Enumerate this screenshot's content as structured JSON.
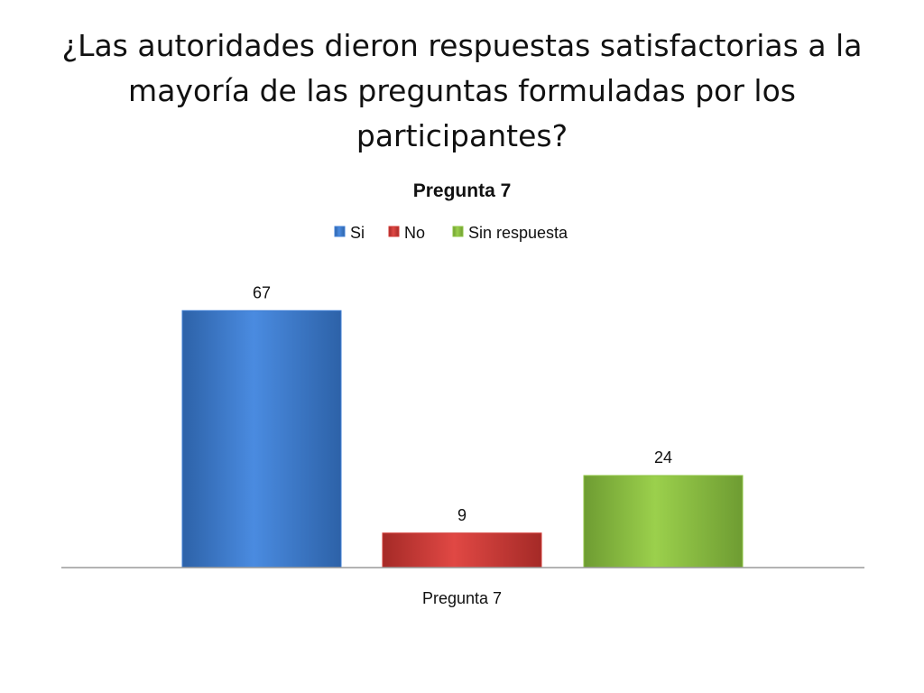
{
  "slide": {
    "title": "¿Las autoridades dieron respuestas satisfactorias a la mayoría de las preguntas formuladas por los participantes?"
  },
  "chart_data": {
    "type": "bar",
    "title": "Pregunta 7",
    "categories": [
      "Pregunta 7"
    ],
    "series": [
      {
        "name": "Si",
        "values": [
          67
        ],
        "color": "#3f7fd6"
      },
      {
        "name": "No",
        "values": [
          9
        ],
        "color": "#d23a36"
      },
      {
        "name": "Sin respuesta",
        "values": [
          24
        ],
        "color": "#8ec442"
      }
    ],
    "xlabel": "",
    "ylabel": "",
    "ylim": [
      0,
      80
    ],
    "grid": false,
    "legend": "top",
    "data_labels": true
  }
}
